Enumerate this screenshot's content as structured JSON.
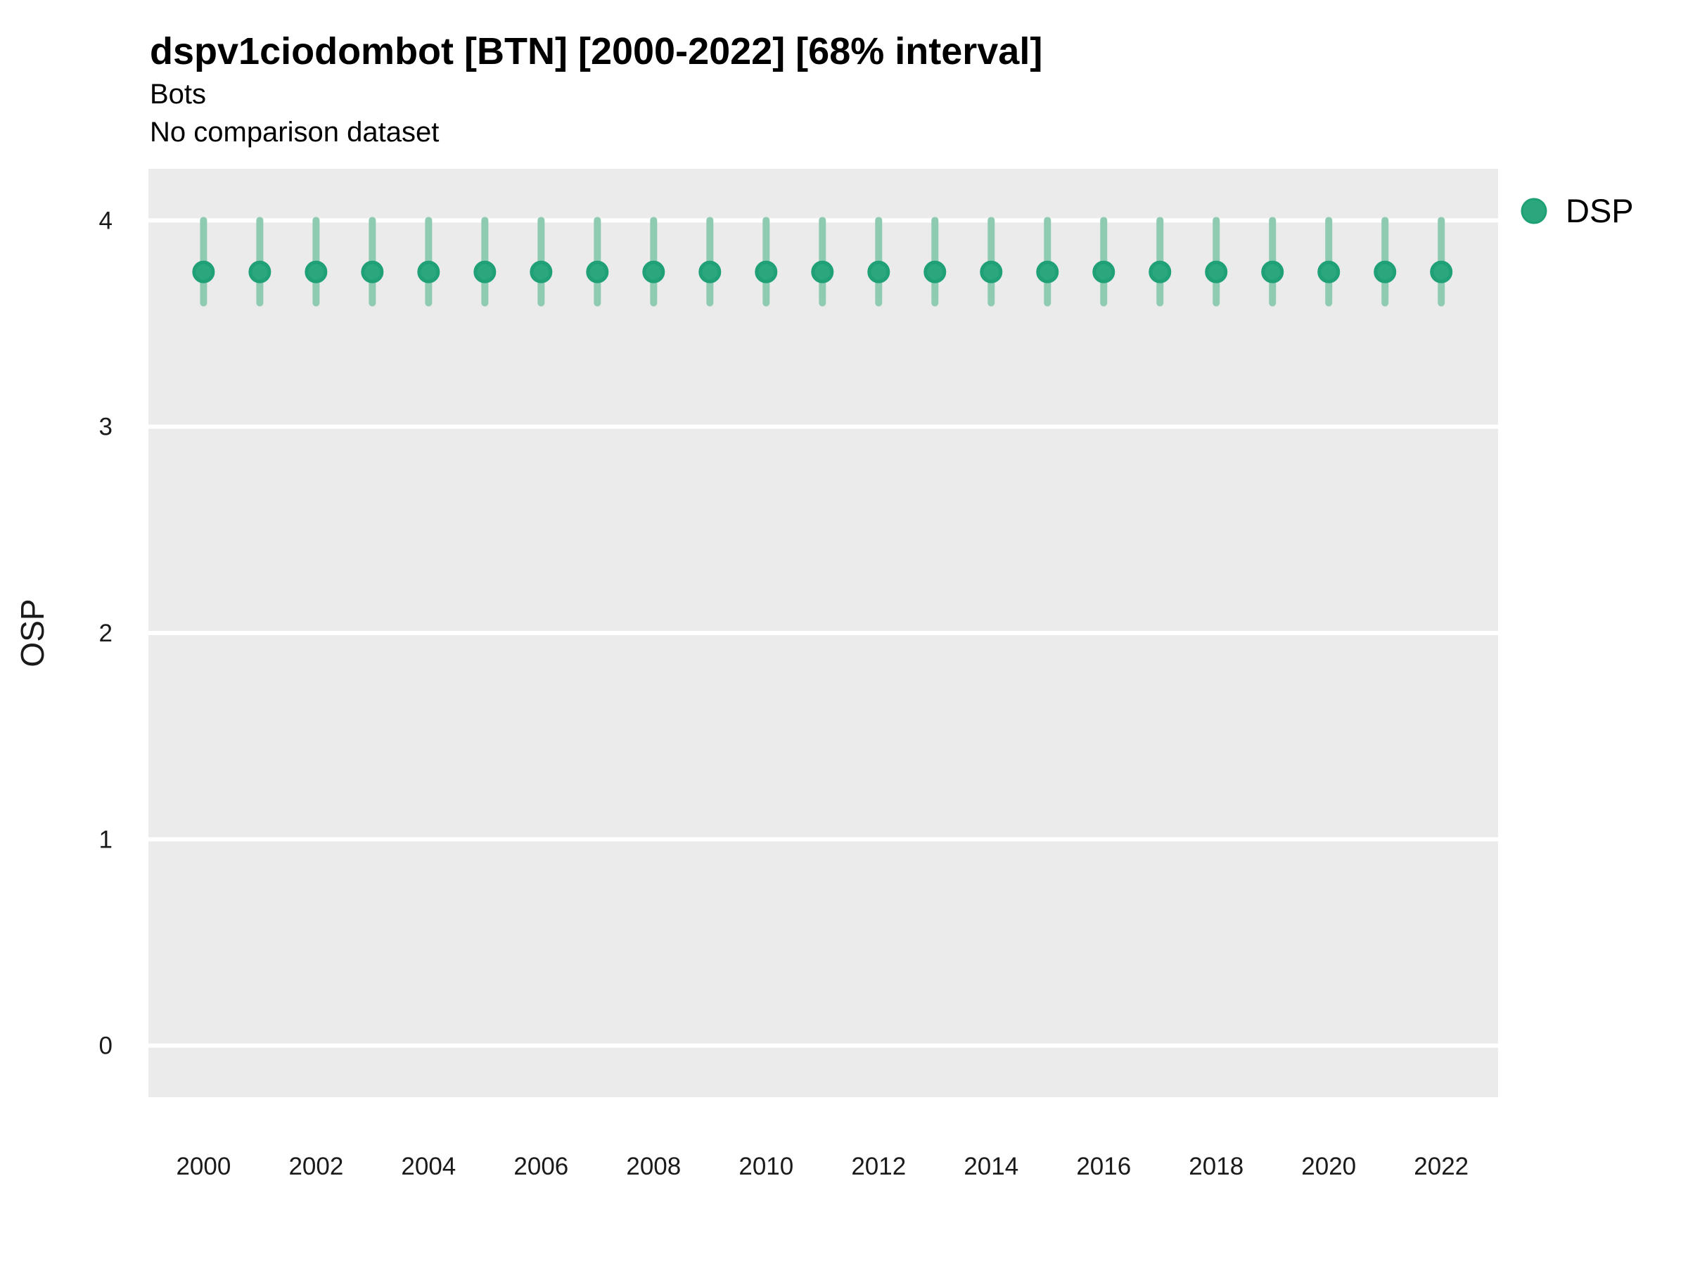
{
  "header": {
    "title": "dspv1ciodombot [BTN] [2000-2022] [68% interval]",
    "subtitle": "Bots",
    "comparison": "No comparison dataset"
  },
  "axes": {
    "y_title": "OSP",
    "y_ticks": [
      4,
      3,
      2,
      1,
      0
    ],
    "x_ticks": [
      2000,
      2002,
      2004,
      2006,
      2008,
      2010,
      2012,
      2014,
      2016,
      2018,
      2020,
      2022
    ]
  },
  "legend": {
    "label": "DSP",
    "position": "right-top"
  },
  "colors": {
    "panel_background": "#EBEBEB",
    "gridline": "#FFFFFF",
    "point_fill": "#2BA77D",
    "point_stroke": "#1FA076",
    "interval_bar": "#8FCBB0",
    "text": "#1A1A1A"
  },
  "chart_data": {
    "type": "scatter",
    "subtype": "pointrange",
    "title": "dspv1ciodombot [BTN] [2000-2022] [68% interval]",
    "subtitle": "Bots",
    "note": "No comparison dataset",
    "xlabel": "",
    "ylabel": "OSP",
    "interval_level": "68%",
    "grid": "horizontal major gridlines, white on grey panel",
    "legend_position": "right-top",
    "xlim": [
      1999.02,
      2023.01
    ],
    "ylim": [
      -0.25,
      4.25
    ],
    "x": [
      2000,
      2001,
      2002,
      2003,
      2004,
      2005,
      2006,
      2007,
      2008,
      2009,
      2010,
      2011,
      2012,
      2013,
      2014,
      2015,
      2016,
      2017,
      2018,
      2019,
      2020,
      2021,
      2022
    ],
    "series": [
      {
        "name": "DSP",
        "values": [
          3.75,
          3.75,
          3.75,
          3.75,
          3.75,
          3.75,
          3.75,
          3.75,
          3.75,
          3.75,
          3.75,
          3.75,
          3.75,
          3.75,
          3.75,
          3.75,
          3.75,
          3.75,
          3.75,
          3.75,
          3.75,
          3.75,
          3.75
        ],
        "lower": [
          3.6,
          3.6,
          3.6,
          3.6,
          3.6,
          3.6,
          3.6,
          3.6,
          3.6,
          3.6,
          3.6,
          3.6,
          3.6,
          3.6,
          3.6,
          3.6,
          3.6,
          3.6,
          3.6,
          3.6,
          3.6,
          3.6,
          3.6
        ],
        "upper": [
          4.0,
          4.0,
          4.0,
          4.0,
          4.0,
          4.0,
          4.0,
          4.0,
          4.0,
          4.0,
          4.0,
          4.0,
          4.0,
          4.0,
          4.0,
          4.0,
          4.0,
          4.0,
          4.0,
          4.0,
          4.0,
          4.0,
          4.0
        ]
      }
    ]
  }
}
